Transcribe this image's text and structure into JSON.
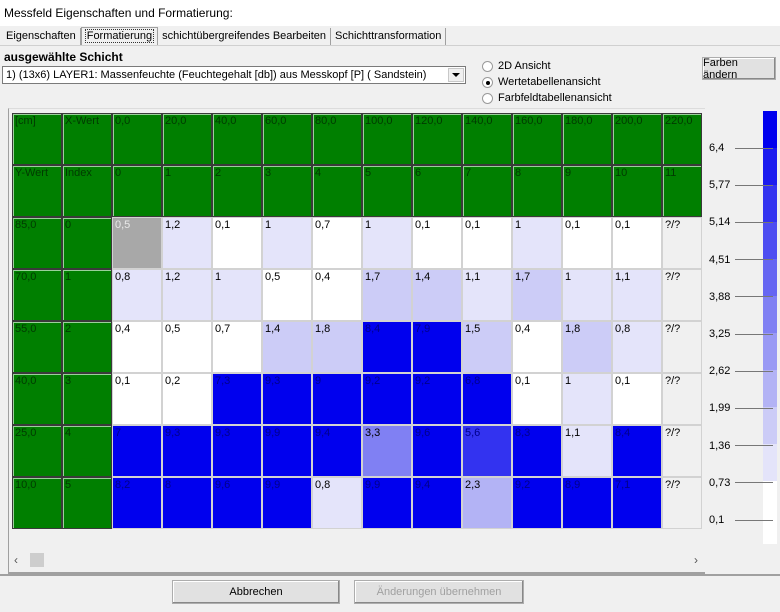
{
  "window": {
    "title": "Messfeld Eigenschaften und Formatierung:"
  },
  "tabs": [
    {
      "label": "Eigenschaften",
      "active": false
    },
    {
      "label": "Formatierung",
      "active": true
    },
    {
      "label": "schichtübergreifendes Bearbeiten",
      "active": false
    },
    {
      "label": "Schichttransformation",
      "active": false
    }
  ],
  "layer": {
    "section_label": "ausgewählte Schicht",
    "selected": "1) (13x6) LAYER1: Massenfeuchte (Feuchtegehalt [db])  aus Messkopf [P] ( Sandstein)"
  },
  "view_options": [
    {
      "label": "2D Ansicht",
      "checked": false
    },
    {
      "label": "Wertetabellenansicht",
      "checked": true
    },
    {
      "label": "Farbfeldtabellenansicht",
      "checked": false
    }
  ],
  "buttons": {
    "change_colors": "Farben ändern",
    "cancel": "Abbrechen",
    "apply": "Änderungen übernehmen"
  },
  "table": {
    "header_row_x": [
      "[cm]",
      "X-Wert",
      "0,0",
      "20,0",
      "40,0",
      "60,0",
      "80,0",
      "100,0",
      "120,0",
      "140,0",
      "160,0",
      "180,0",
      "200,0",
      "220,0"
    ],
    "header_row_index": [
      "Y-Wert",
      "Index",
      "0",
      "1",
      "2",
      "3",
      "4",
      "5",
      "6",
      "7",
      "8",
      "9",
      "10",
      "11"
    ],
    "rows": [
      {
        "y": "85,0",
        "index": "0",
        "values": [
          "0,5",
          "1,2",
          "0,1",
          "1",
          "0,7",
          "1",
          "0,1",
          "0,1",
          "1",
          "0,1",
          "0,1",
          "?/?"
        ]
      },
      {
        "y": "70,0",
        "index": "1",
        "values": [
          "0,8",
          "1,2",
          "1",
          "0,5",
          "0,4",
          "1,7",
          "1,4",
          "1,1",
          "1,7",
          "1",
          "1,1",
          "?/?"
        ]
      },
      {
        "y": "55,0",
        "index": "2",
        "values": [
          "0,4",
          "0,5",
          "0,7",
          "1,4",
          "1,8",
          "8,4",
          "7,9",
          "1,5",
          "0,4",
          "1,8",
          "0,8",
          "?/?"
        ]
      },
      {
        "y": "40,0",
        "index": "3",
        "values": [
          "0,1",
          "0,2",
          "7,3",
          "9,3",
          "9",
          "9,2",
          "9,2",
          "6,8",
          "0,1",
          "1",
          "0,1",
          "?/?"
        ]
      },
      {
        "y": "25,0",
        "index": "4",
        "values": [
          "7",
          "9,3",
          "9,3",
          "9,9",
          "9,4",
          "3,3",
          "9,6",
          "5,6",
          "8,3",
          "1,1",
          "8,4",
          "?/?"
        ]
      },
      {
        "y": "10,0",
        "index": "5",
        "values": [
          "8,2",
          "8",
          "9,6",
          "9,9",
          "0,8",
          "9,9",
          "9,4",
          "2,3",
          "9,2",
          "8,9",
          "7,1",
          "?/?"
        ]
      }
    ],
    "selected_cell": {
      "row": 0,
      "col": 0
    }
  },
  "legend": {
    "ticks": [
      "6,4",
      "5,77",
      "5,14",
      "4,51",
      "3,88",
      "3,25",
      "2,62",
      "1,99",
      "1,36",
      "0,73",
      "0,1"
    ],
    "colors": [
      "#0000ee",
      "#1a1aef",
      "#3333f0",
      "#4d4df1",
      "#6666f2",
      "#8080f3",
      "#9999f4",
      "#b3b3f5",
      "#ccccf7",
      "#e4e4fa",
      "#ffffff"
    ]
  }
}
